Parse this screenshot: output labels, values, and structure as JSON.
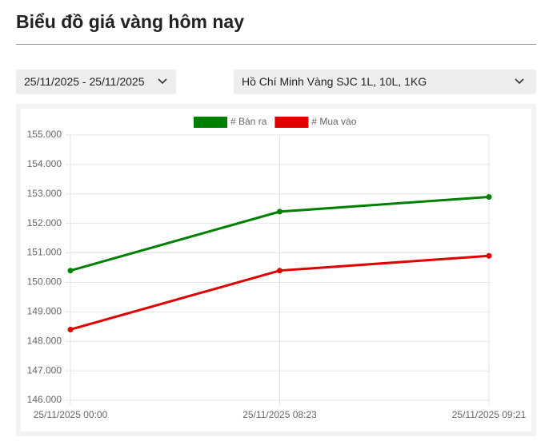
{
  "header": {
    "title": "Biểu đồ giá vàng hôm nay"
  },
  "filters": {
    "date_range": "25/11/2025 - 25/11/2025",
    "product": "Hồ Chí Minh Vàng SJC 1L, 10L, 1KG"
  },
  "chart_data": {
    "type": "line",
    "categories": [
      "25/11/2025 00:00",
      "25/11/2025 08:23",
      "25/11/2025 09:21"
    ],
    "series": [
      {
        "name": "# Bán ra",
        "color": "#008000",
        "values": [
          150400,
          152400,
          152900
        ]
      },
      {
        "name": "# Mua vào",
        "color": "#e00000",
        "values": [
          148400,
          150400,
          150900
        ]
      }
    ],
    "ylim": [
      146000,
      155000
    ],
    "yticks": [
      {
        "value": 146000,
        "label": "146.000"
      },
      {
        "value": 147000,
        "label": "147.000"
      },
      {
        "value": 148000,
        "label": "148.000"
      },
      {
        "value": 149000,
        "label": "149.000"
      },
      {
        "value": 150000,
        "label": "150.000"
      },
      {
        "value": 151000,
        "label": "151.000"
      },
      {
        "value": 152000,
        "label": "152.000"
      },
      {
        "value": 153000,
        "label": "153.000"
      },
      {
        "value": 154000,
        "label": "154.000"
      },
      {
        "value": 155000,
        "label": "155.000"
      }
    ],
    "grid": true,
    "legend": "top"
  }
}
